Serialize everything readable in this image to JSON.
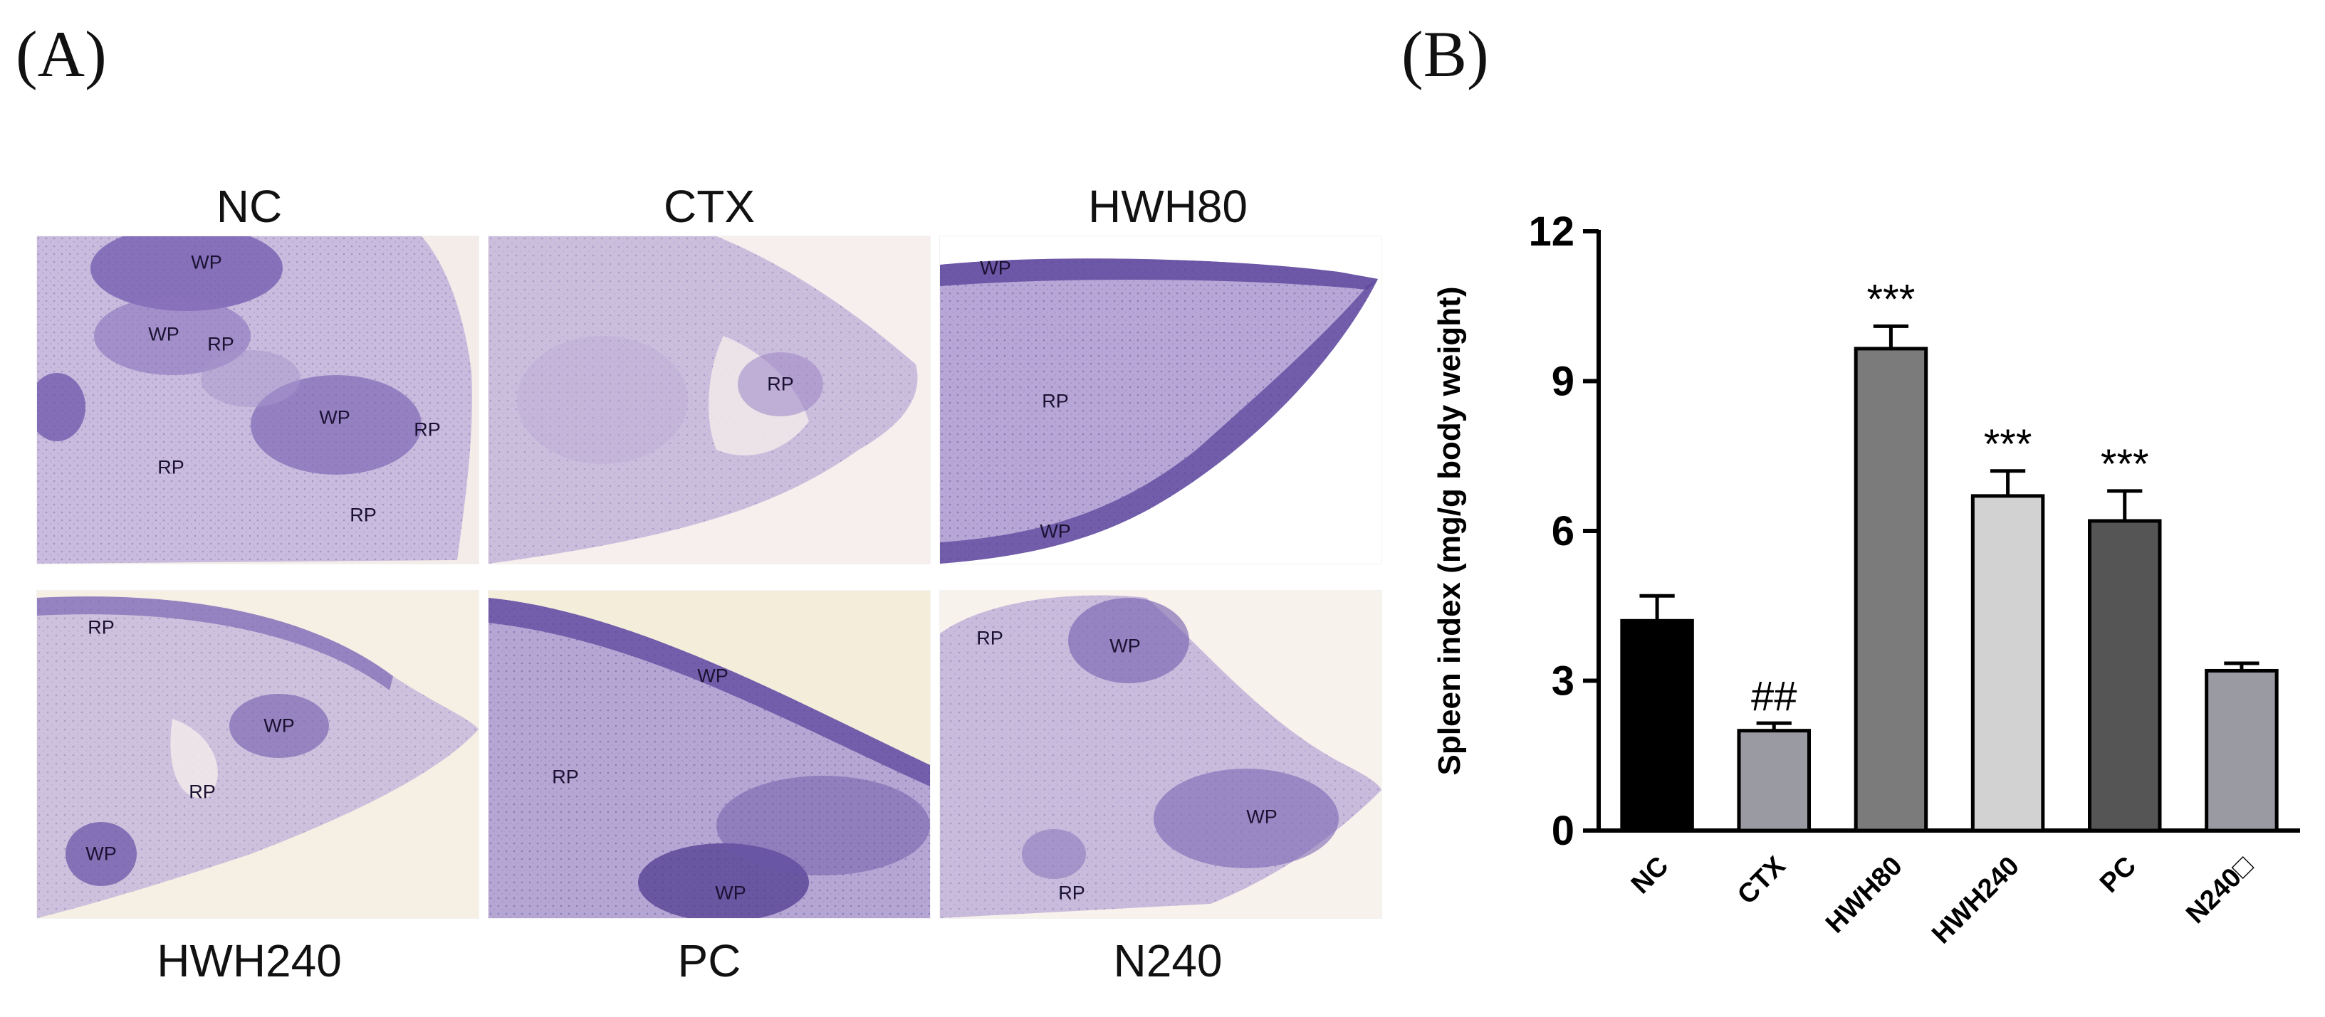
{
  "panel_a": {
    "letter": "(A)",
    "top_labels": [
      "NC",
      "CTX",
      "HWH80"
    ],
    "bottom_labels": [
      "HWH240",
      "PC",
      "N240"
    ],
    "tiles": [
      {
        "name": "NC",
        "regions": [
          "WP",
          "WP",
          "RP",
          "WP",
          "RP",
          "RP",
          "RP"
        ]
      },
      {
        "name": "CTX",
        "regions": [
          "RP"
        ]
      },
      {
        "name": "HWH80",
        "regions": [
          "WP",
          "RP",
          "WP"
        ]
      },
      {
        "name": "HWH240",
        "regions": [
          "RP",
          "WP",
          "RP",
          "WP"
        ]
      },
      {
        "name": "PC",
        "regions": [
          "WP",
          "RP",
          "WP"
        ]
      },
      {
        "name": "N240",
        "regions": [
          "RP",
          "WP",
          "WP",
          "RP"
        ]
      }
    ],
    "colors": {
      "tissue": "#c6b8dc",
      "white_pulp": "#6e56ad",
      "background": "#f4ece8"
    }
  },
  "panel_b": {
    "letter": "(B)"
  },
  "chart_data": {
    "type": "bar",
    "title": "",
    "xlabel": "",
    "ylabel": "Spleen index (mg/g body weight)",
    "ylim": [
      0,
      12
    ],
    "yticks": [
      0,
      3,
      6,
      9,
      12
    ],
    "categories": [
      "NC",
      "CTX",
      "HWH80",
      "HWH240",
      "PC",
      "N240□"
    ],
    "values": [
      4.2,
      2.0,
      9.65,
      6.7,
      6.2,
      3.2
    ],
    "errors": [
      0.5,
      0.15,
      0.45,
      0.5,
      0.6,
      0.15
    ],
    "significance": [
      "",
      "##",
      "***",
      "***",
      "***",
      ""
    ],
    "colors": [
      "#000000",
      "#9a9aa2",
      "#7b7b7b",
      "#d2d2d2",
      "#555555",
      "#9a9aa2"
    ],
    "grid": false,
    "legend": "none"
  }
}
